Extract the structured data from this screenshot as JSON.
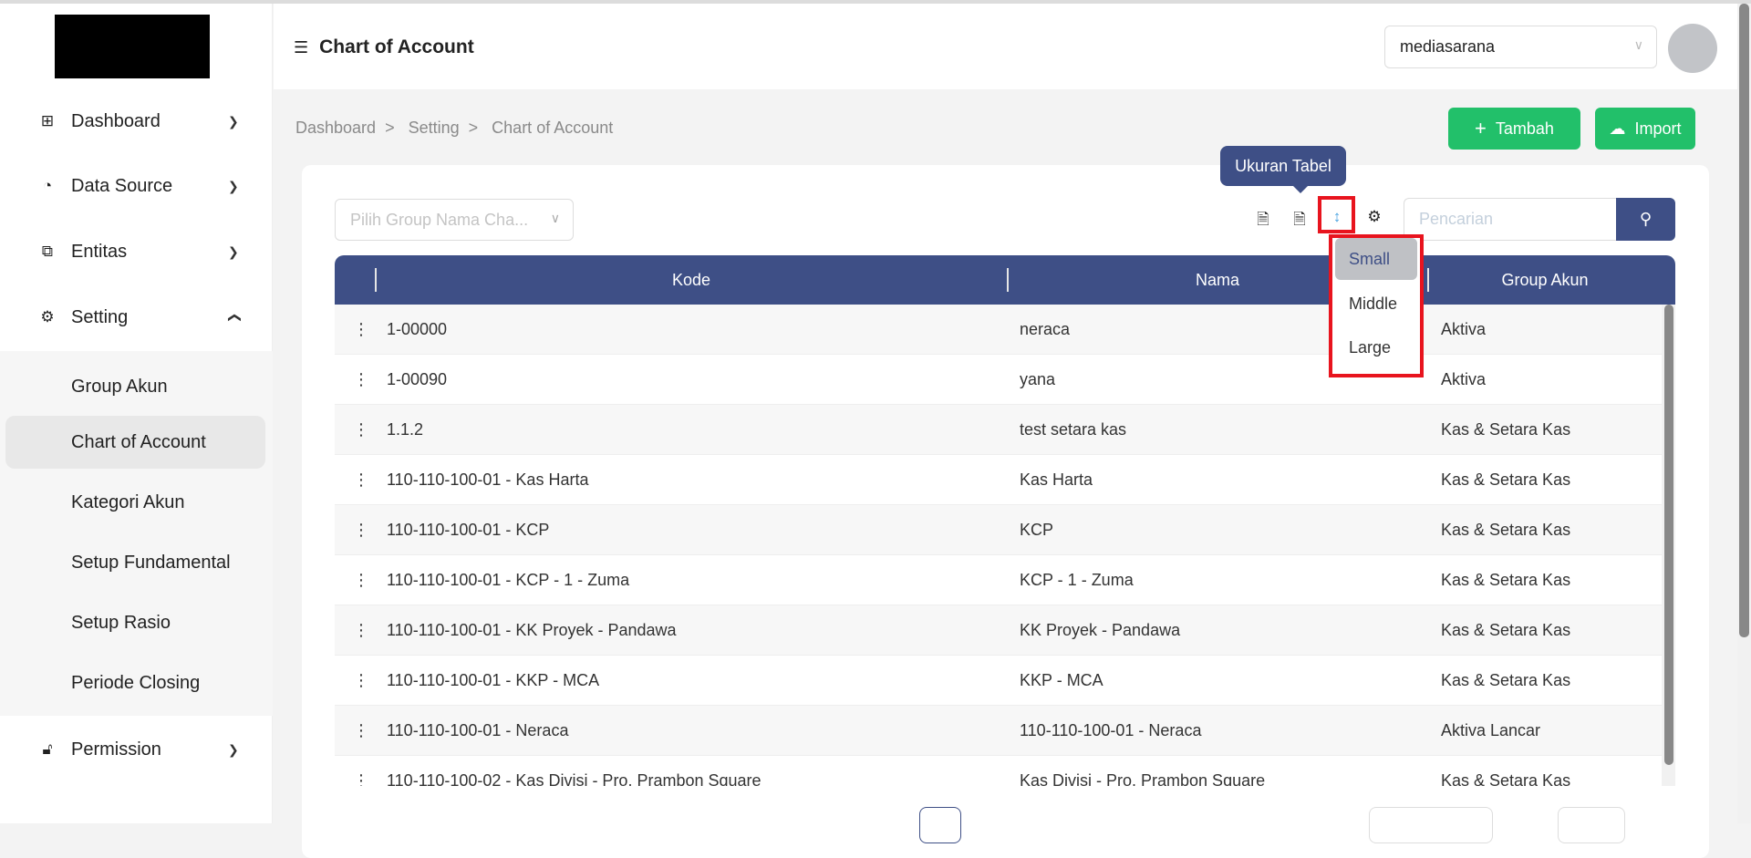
{
  "sidebar": {
    "items": [
      {
        "label": "Dashboard",
        "icon": "grid-icon"
      },
      {
        "label": "Data Source",
        "icon": "pie-chart-icon"
      },
      {
        "label": "Entitas",
        "icon": "sliders-icon"
      },
      {
        "label": "Setting",
        "icon": "gear-icon"
      },
      {
        "label": "Permission",
        "icon": "lock-icon"
      }
    ],
    "submenu": [
      "Group Akun",
      "Chart of Account",
      "Kategori Akun",
      "Setup Fundamental",
      "Setup Rasio",
      "Periode Closing"
    ],
    "active": "Chart of Account"
  },
  "header": {
    "title": "Chart of Account",
    "company": "mediasarana"
  },
  "breadcrumb": [
    "Dashboard",
    "Setting",
    "Chart of Account"
  ],
  "breadcrumb_sep": ">",
  "actions": {
    "add": "Tambah",
    "import": "Import"
  },
  "toolbar": {
    "filter_placeholder": "Pilih Group Nama Cha...",
    "search_placeholder": "Pencarian",
    "tooltip": "Ukuran Tabel",
    "size_options": [
      "Small",
      "Middle",
      "Large"
    ],
    "selected_size": "Small"
  },
  "table": {
    "columns": [
      "Kode",
      "Nama",
      "Group Akun"
    ],
    "rows": [
      [
        "1-00000",
        "neraca",
        "Aktiva"
      ],
      [
        "1-00090",
        "yana",
        "Aktiva"
      ],
      [
        "1.1.2",
        "test setara kas",
        "Kas & Setara Kas"
      ],
      [
        "110-110-100-01 - Kas Harta",
        "Kas Harta",
        "Kas & Setara Kas"
      ],
      [
        "110-110-100-01 - KCP",
        "KCP",
        "Kas & Setara Kas"
      ],
      [
        "110-110-100-01 - KCP - 1 - Zuma",
        "KCP - 1 - Zuma",
        "Kas & Setara Kas"
      ],
      [
        "110-110-100-01 - KK Proyek - Pandawa",
        "KK Proyek - Pandawa",
        "Kas & Setara Kas"
      ],
      [
        "110-110-100-01 - KKP - MCA",
        "KKP - MCA",
        "Kas & Setara Kas"
      ],
      [
        "110-110-100-01 - Neraca",
        "110-110-100-01 - Neraca",
        "Aktiva Lancar"
      ],
      [
        "110-110-100-02 - Kas Divisi - Pro. Prambon Square",
        "Kas Divisi - Pro. Prambon Square",
        "Kas & Setara Kas"
      ]
    ]
  },
  "colors": {
    "primary": "#3e4f86",
    "success": "#22c06a",
    "highlight": "#e8141e"
  }
}
